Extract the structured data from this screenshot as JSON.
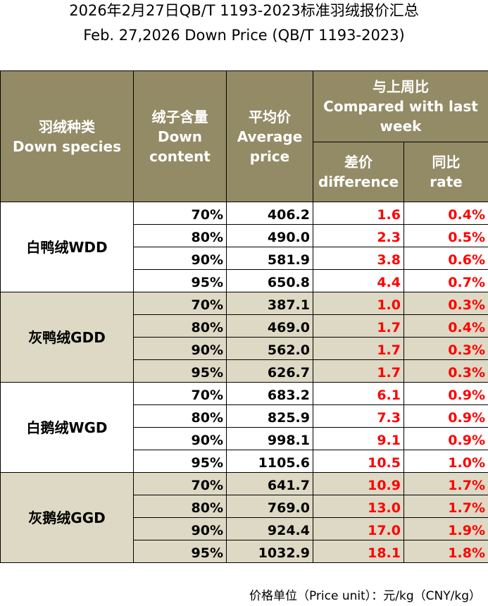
{
  "title_cn": "2026年2月27日QB/T 1193-2023标准羽绒报价汇总",
  "title_en": "Feb. 27,2026 Down Price (QB/T 1193-2023)",
  "headers": {
    "species_cn": "羽绒种类",
    "species_en": "Down species",
    "content_cn": "绒子含量",
    "content_en_1": "Down",
    "content_en_2": "content",
    "avg_cn": "平均价",
    "avg_en_1": "Average",
    "avg_en_2": "price",
    "compare_cn": "与上周比",
    "compare_en_1": "Compared with last",
    "compare_en_2": "week",
    "diff_cn": "差价",
    "diff_en": "difference",
    "rate_cn": "同比",
    "rate_en": "rate"
  },
  "groups": [
    {
      "species": "白鸭绒WDD",
      "rows": [
        {
          "content": "70%",
          "avg": "406.2",
          "diff": "1.6",
          "rate": "0.4%"
        },
        {
          "content": "80%",
          "avg": "490.0",
          "diff": "2.3",
          "rate": "0.5%"
        },
        {
          "content": "90%",
          "avg": "581.9",
          "diff": "3.8",
          "rate": "0.6%"
        },
        {
          "content": "95%",
          "avg": "650.8",
          "diff": "4.4",
          "rate": "0.7%"
        }
      ]
    },
    {
      "species": "灰鸭绒GDD",
      "rows": [
        {
          "content": "70%",
          "avg": "387.1",
          "diff": "1.0",
          "rate": "0.3%"
        },
        {
          "content": "80%",
          "avg": "469.0",
          "diff": "1.7",
          "rate": "0.4%"
        },
        {
          "content": "90%",
          "avg": "562.0",
          "diff": "1.7",
          "rate": "0.3%"
        },
        {
          "content": "95%",
          "avg": "626.7",
          "diff": "1.7",
          "rate": "0.3%"
        }
      ]
    },
    {
      "species": "白鹅绒WGD",
      "rows": [
        {
          "content": "70%",
          "avg": "683.2",
          "diff": "6.1",
          "rate": "0.9%"
        },
        {
          "content": "80%",
          "avg": "825.9",
          "diff": "7.3",
          "rate": "0.9%"
        },
        {
          "content": "90%",
          "avg": "998.1",
          "diff": "9.1",
          "rate": "0.9%"
        },
        {
          "content": "95%",
          "avg": "1105.6",
          "diff": "10.5",
          "rate": "1.0%"
        }
      ]
    },
    {
      "species": "灰鹅绒GGD",
      "rows": [
        {
          "content": "70%",
          "avg": "641.7",
          "diff": "10.9",
          "rate": "1.7%"
        },
        {
          "content": "80%",
          "avg": "769.0",
          "diff": "13.0",
          "rate": "1.7%"
        },
        {
          "content": "90%",
          "avg": "924.4",
          "diff": "17.0",
          "rate": "1.9%"
        },
        {
          "content": "95%",
          "avg": "1032.9",
          "diff": "18.1",
          "rate": "1.8%"
        }
      ]
    }
  ],
  "footer": "价格单位（Price unit）：元/kg（CNY/kg）",
  "colors": {
    "header_bg": "#938b66",
    "alt_row_bg": "#ddd9c4",
    "change_text": "#ff0000"
  }
}
